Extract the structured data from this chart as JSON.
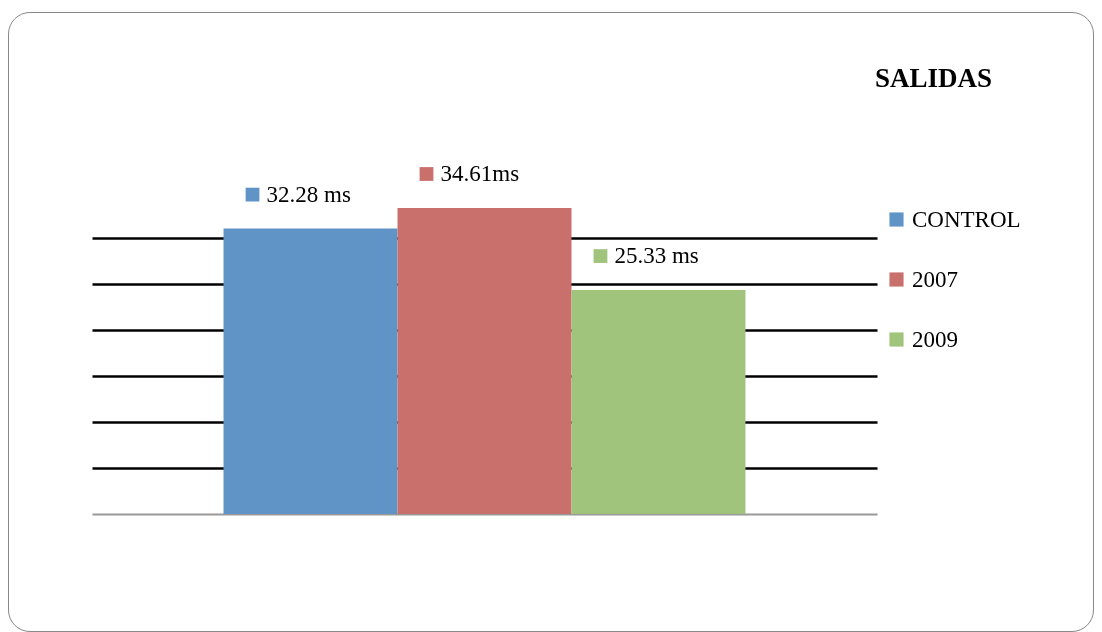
{
  "chart_data": {
    "type": "bar",
    "title": "SALIDAS",
    "categories": [
      null
    ],
    "series": [
      {
        "name": "CONTROL",
        "color": "#6194c6",
        "values": [
          32.28
        ],
        "value_labels": [
          "32.28 ms"
        ]
      },
      {
        "name": "2007",
        "color": "#c96f6c",
        "values": [
          34.61
        ],
        "value_labels": [
          "34.61ms"
        ]
      },
      {
        "name": "2009",
        "color": "#a0c47c",
        "values": [
          25.33
        ],
        "value_labels": [
          "25.33 ms"
        ]
      }
    ],
    "tick_labels": false,
    "yticks": [
      {
        "value": 5.2,
        "label": null
      },
      {
        "value": 10.4,
        "label": null
      },
      {
        "value": 15.6,
        "label": null
      },
      {
        "value": 20.8,
        "label": null
      },
      {
        "value": 26,
        "label": null
      },
      {
        "value": 31.2,
        "label": null
      }
    ],
    "grid": "y",
    "legend": "right"
  }
}
